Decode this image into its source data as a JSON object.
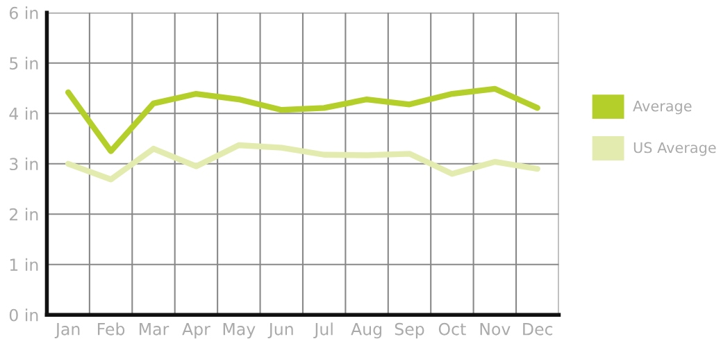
{
  "chart_data": {
    "type": "line",
    "categories": [
      "Jan",
      "Feb",
      "Mar",
      "Apr",
      "May",
      "Jun",
      "Jul",
      "Aug",
      "Sep",
      "Oct",
      "Nov",
      "Dec"
    ],
    "series": [
      {
        "name": "Average",
        "color": "#b5cf2a",
        "values": [
          4.42,
          3.25,
          4.2,
          4.39,
          4.28,
          4.07,
          4.11,
          4.28,
          4.18,
          4.39,
          4.49,
          4.11
        ]
      },
      {
        "name": "US Average",
        "color": "#e3ecae",
        "values": [
          3.0,
          2.69,
          3.3,
          2.95,
          3.37,
          3.32,
          3.18,
          3.17,
          3.2,
          2.8,
          3.04,
          2.9
        ]
      }
    ],
    "ylim": [
      0,
      6
    ],
    "yticks": [
      {
        "value": 0,
        "label": "0 in"
      },
      {
        "value": 1,
        "label": "1 in"
      },
      {
        "value": 2,
        "label": "2 in"
      },
      {
        "value": 3,
        "label": "3 in"
      },
      {
        "value": 4,
        "label": "4 in"
      },
      {
        "value": 5,
        "label": "5 in"
      },
      {
        "value": 6,
        "label": "6 in"
      }
    ],
    "grid": true,
    "legend": "right",
    "marker": "none",
    "line_style": "solid"
  }
}
